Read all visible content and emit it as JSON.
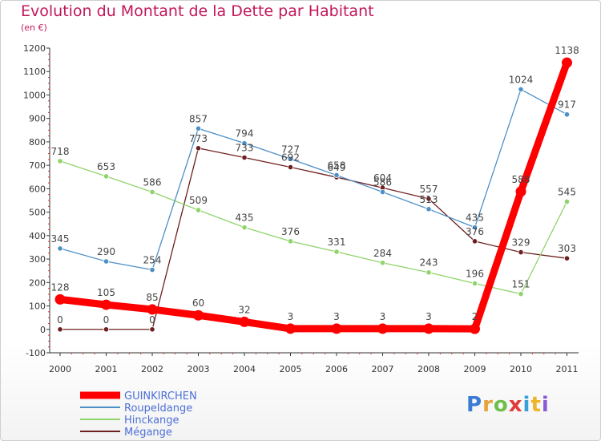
{
  "title": "Evolution du Montant de la Dette par Habitant",
  "subtitle": "(en €)",
  "logo": {
    "text": "Proxiti",
    "colors": [
      "#3a7bd5",
      "#e8a23a",
      "#6fbf4a",
      "#e23b3b",
      "#3aa0d8",
      "#f0b429",
      "#8b5bd4"
    ]
  },
  "chart_data": {
    "type": "line",
    "title": "Evolution du Montant de la Dette par Habitant",
    "subtitle": "(en €)",
    "xlabel": "",
    "ylabel": "",
    "categories": [
      "2000",
      "2001",
      "2002",
      "2003",
      "2004",
      "2005",
      "2006",
      "2007",
      "2008",
      "2009",
      "2010",
      "2011"
    ],
    "ylim": [
      -100,
      1200
    ],
    "yticks": [
      -100,
      0,
      100,
      200,
      300,
      400,
      500,
      600,
      700,
      800,
      900,
      1000,
      1100,
      1200
    ],
    "grid": false,
    "legend_position": "bottom-left",
    "series": [
      {
        "name": "GUINKIRCHEN",
        "color": "#ff0000",
        "values": [
          128,
          105,
          85,
          60,
          32,
          3,
          3,
          3,
          3,
          2,
          588,
          1138
        ]
      },
      {
        "name": "Roupeldange",
        "color": "#4d8fc7",
        "values": [
          345,
          290,
          254,
          857,
          794,
          727,
          658,
          586,
          513,
          435,
          1024,
          917
        ]
      },
      {
        "name": "Hinckange",
        "color": "#8fd46b",
        "values": [
          718,
          653,
          586,
          509,
          435,
          376,
          331,
          284,
          243,
          196,
          151,
          545
        ]
      },
      {
        "name": "Mégange",
        "color": "#6e1f1f",
        "values": [
          0,
          0,
          0,
          773,
          733,
          692,
          649,
          604,
          557,
          376,
          329,
          303
        ]
      }
    ]
  }
}
